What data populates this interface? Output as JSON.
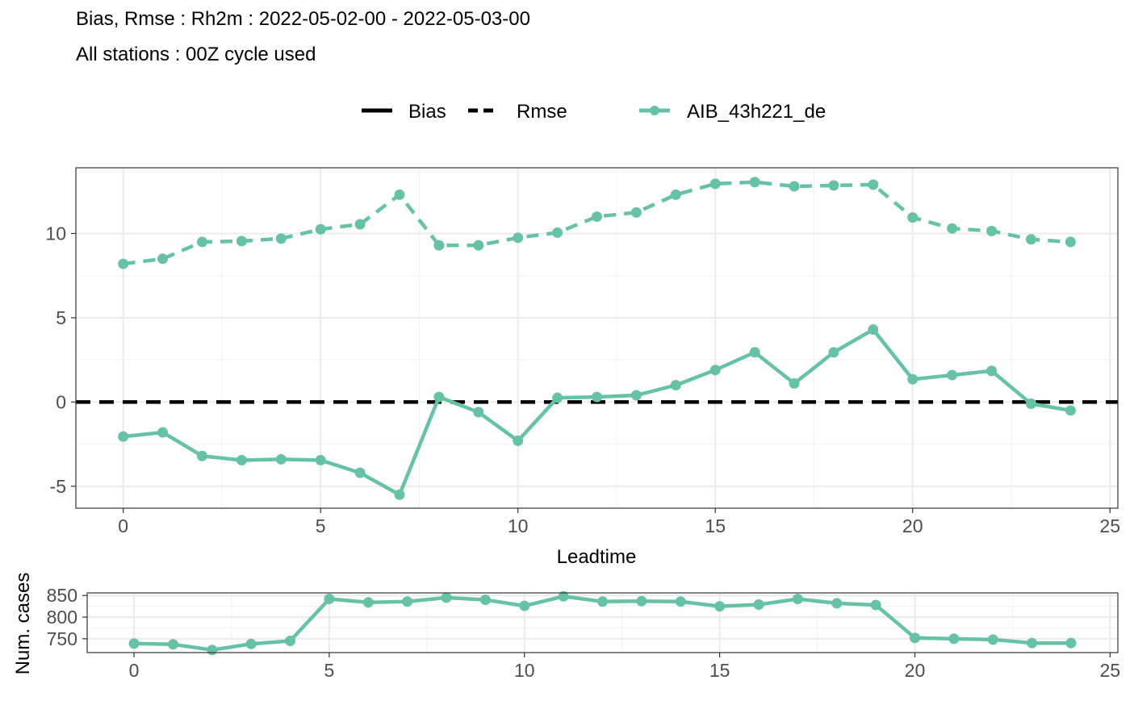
{
  "title": "Bias, Rmse : Rh2m : 2022-05-02-00 - 2022-05-03-00",
  "subtitle": "All stations : 00Z cycle used",
  "legend": {
    "linetype": [
      {
        "label": "Bias",
        "style": "solid"
      },
      {
        "label": "Rmse",
        "style": "dashed"
      }
    ],
    "model": {
      "label": "AIB_43h221_de"
    }
  },
  "colors": {
    "series": "#66c2a5",
    "zero_line": "#000000",
    "grid": "#ebebeb",
    "border": "#333333"
  },
  "chart_data": [
    {
      "type": "line",
      "xlabel": "Leadtime",
      "ylabel": "",
      "xlim": [
        -1.2,
        25.2
      ],
      "ylim": [
        -6.3,
        13.9
      ],
      "x_ticks": [
        0,
        5,
        10,
        15,
        20,
        25
      ],
      "y_ticks": [
        -5,
        0,
        5,
        10
      ],
      "grid": true,
      "legend_position": "top",
      "reference_line": {
        "y": 0,
        "style": "dashed"
      },
      "x": [
        0,
        1,
        2,
        3,
        4,
        5,
        6,
        7,
        8,
        9,
        10,
        11,
        12,
        13,
        14,
        15,
        16,
        17,
        18,
        19,
        20,
        21,
        22,
        23,
        24
      ],
      "series": [
        {
          "name": "AIB_43h221_de",
          "metric": "Bias",
          "linestyle": "solid",
          "values": [
            -2.05,
            -1.8,
            -3.2,
            -3.45,
            -3.4,
            -3.45,
            -4.2,
            -5.5,
            0.3,
            -0.6,
            -2.3,
            0.25,
            0.3,
            0.4,
            1.0,
            1.9,
            2.95,
            1.1,
            2.95,
            4.3,
            1.35,
            1.6,
            1.85,
            -0.1,
            -0.5
          ]
        },
        {
          "name": "AIB_43h221_de",
          "metric": "Rmse",
          "linestyle": "dashed",
          "values": [
            8.2,
            8.5,
            9.5,
            9.55,
            9.7,
            10.25,
            10.55,
            12.3,
            9.3,
            9.3,
            9.75,
            10.05,
            11.0,
            11.25,
            12.3,
            12.95,
            13.05,
            12.8,
            12.85,
            12.9,
            10.95,
            10.3,
            10.15,
            9.65,
            9.5
          ]
        }
      ]
    },
    {
      "type": "line",
      "xlabel": "",
      "ylabel": "Num. cases",
      "xlim": [
        -1.2,
        25.2
      ],
      "ylim": [
        718,
        856
      ],
      "x_ticks": [
        0,
        5,
        10,
        15,
        20,
        25
      ],
      "y_ticks": [
        750,
        800,
        850
      ],
      "grid": true,
      "x": [
        0,
        1,
        2,
        3,
        4,
        5,
        6,
        7,
        8,
        9,
        10,
        11,
        12,
        13,
        14,
        15,
        16,
        17,
        18,
        19,
        20,
        21,
        22,
        23,
        24
      ],
      "series": [
        {
          "name": "AIB_43h221_de",
          "values": [
            739,
            737,
            724,
            738,
            745,
            842,
            834,
            836,
            845,
            840,
            826,
            848,
            836,
            837,
            836,
            825,
            829,
            842,
            832,
            828,
            752,
            750,
            748,
            740,
            740
          ]
        }
      ]
    }
  ]
}
